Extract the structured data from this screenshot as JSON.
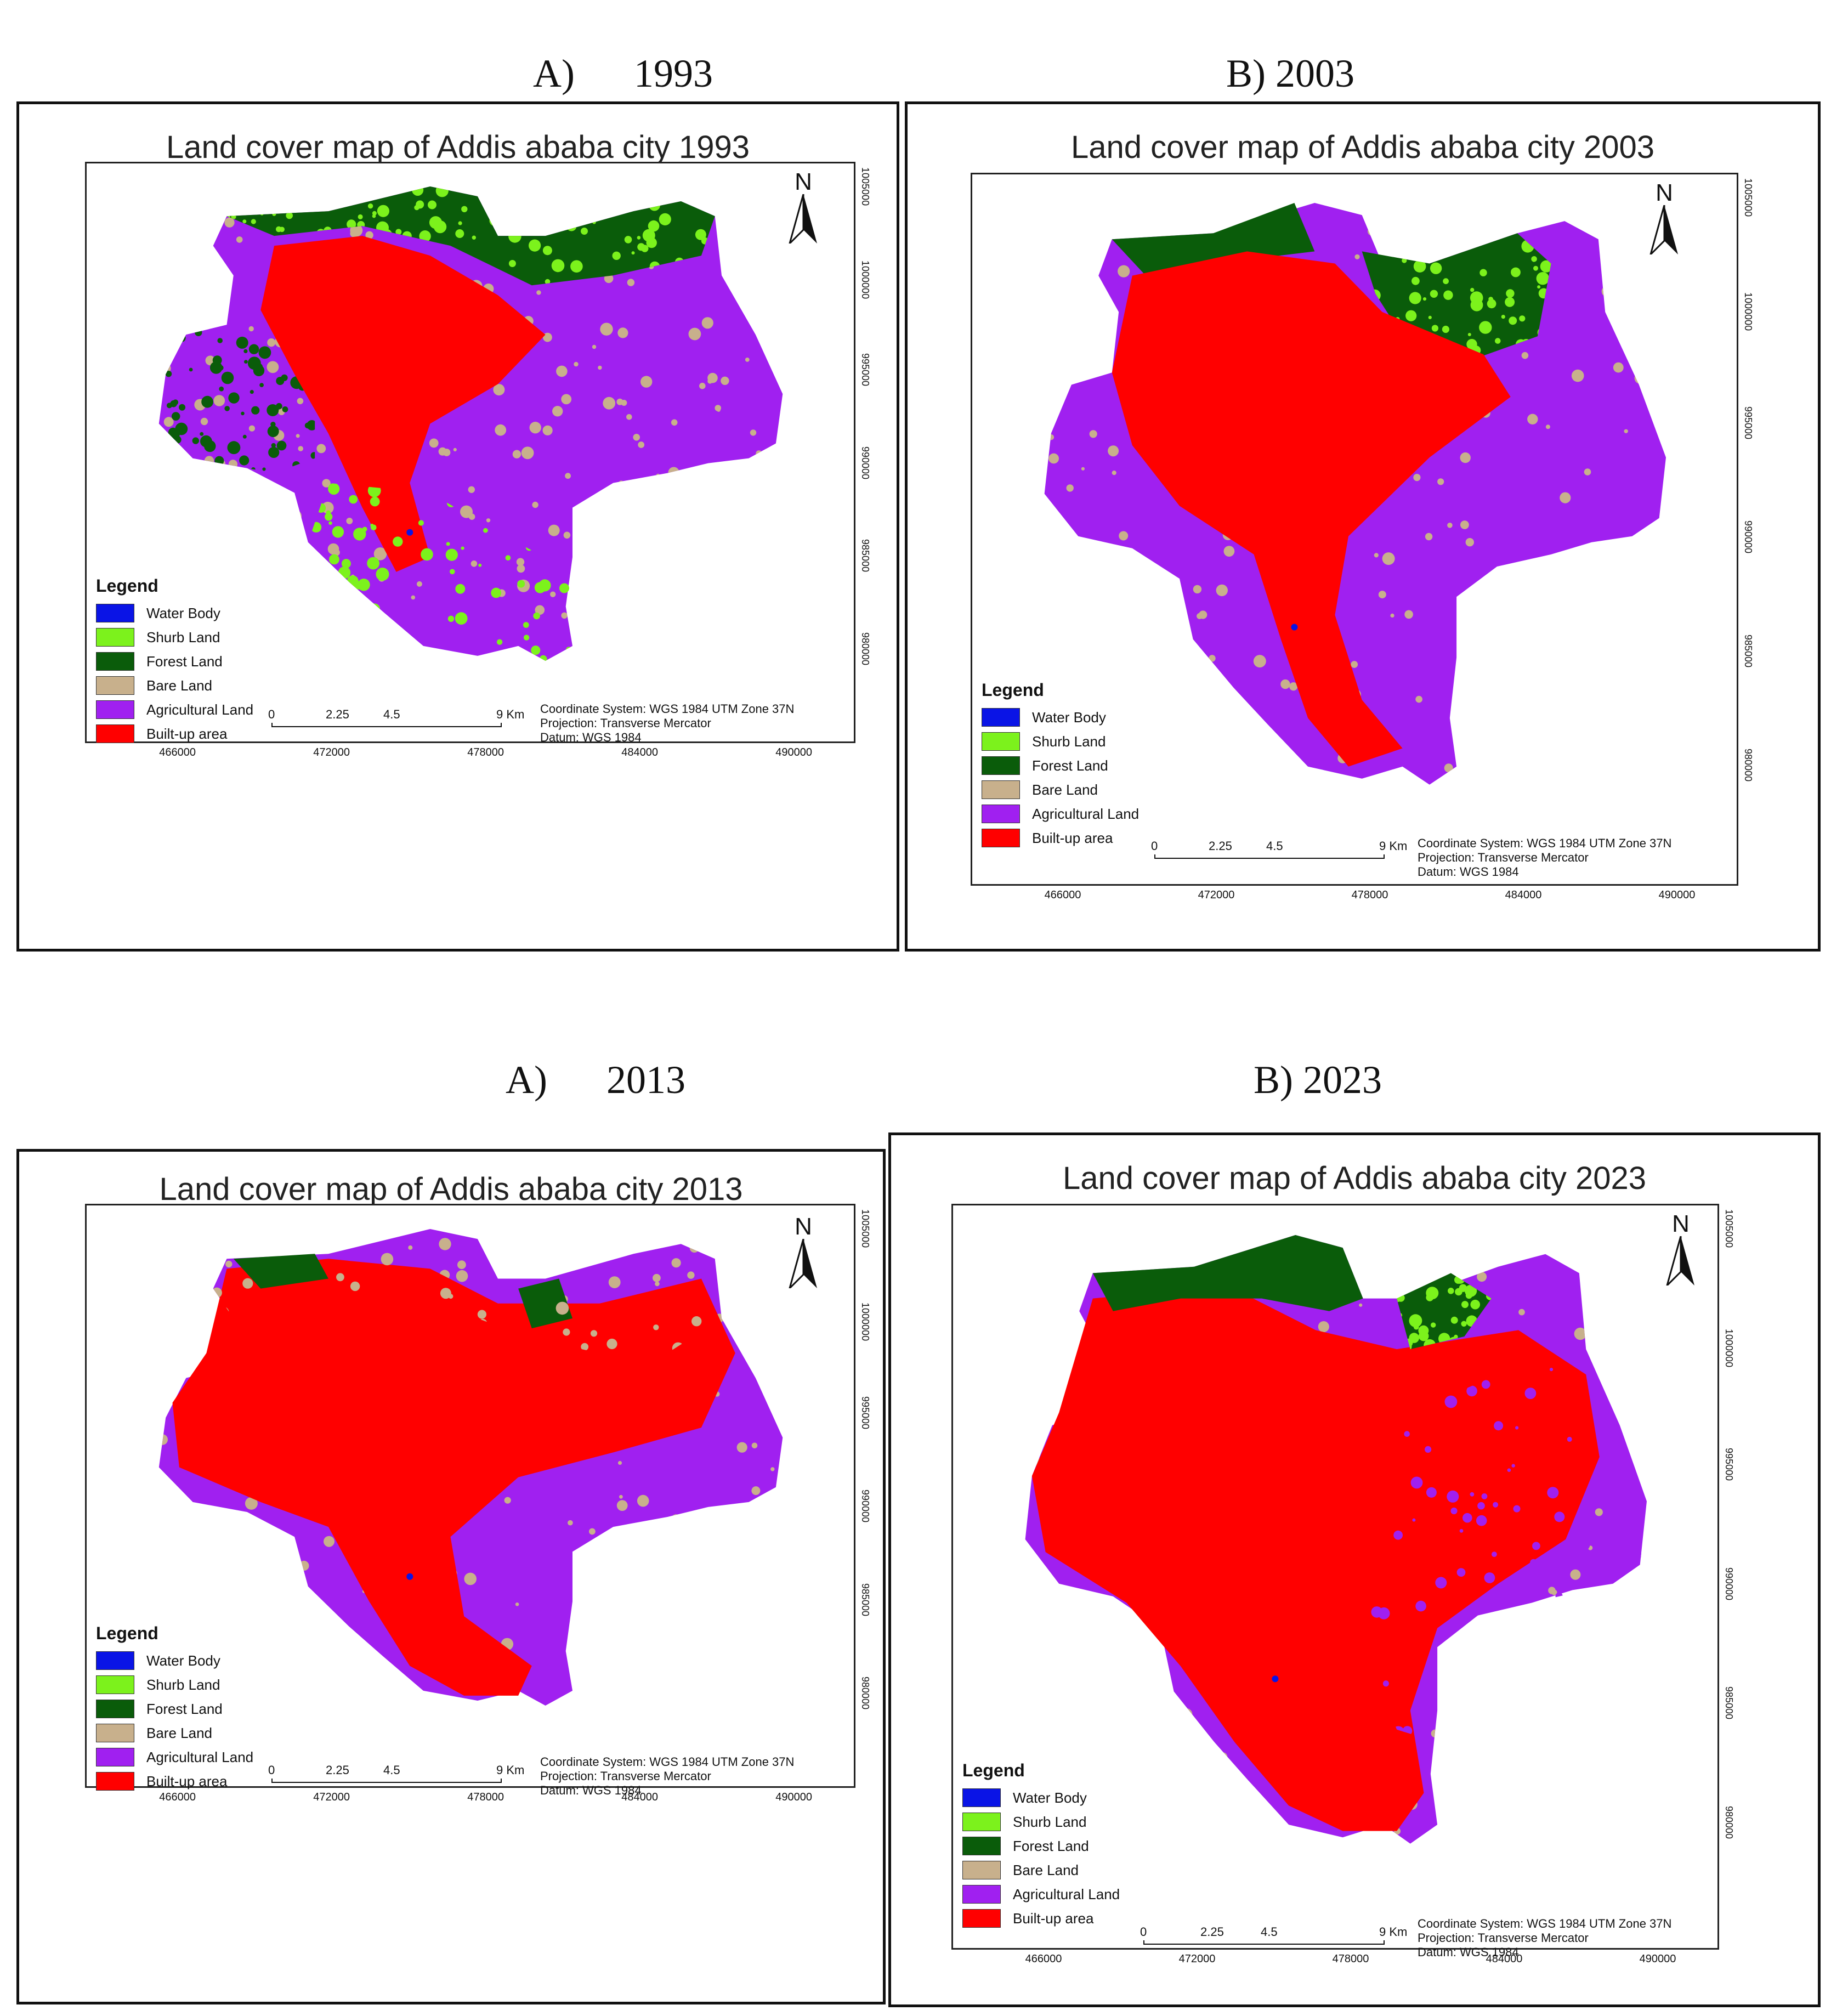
{
  "captions": [
    {
      "letter": "A)",
      "year": "1993"
    },
    {
      "letter": "B) 2003",
      "year": ""
    },
    {
      "letter": "A)",
      "year": "2013"
    },
    {
      "letter": "B) 2023",
      "year": ""
    }
  ],
  "maps": [
    {
      "title": "Land cover map of Addis ababa city 1993",
      "dominant": "mixed-1993"
    },
    {
      "title": "Land cover map of Addis ababa city 2003",
      "dominant": "mixed-2003"
    },
    {
      "title": "Land cover map of Addis ababa city 2013",
      "dominant": "mixed-2013"
    },
    {
      "title": "Land cover map of Addis ababa city 2023",
      "dominant": "mixed-2023"
    }
  ],
  "legend": {
    "title": "Legend",
    "items": [
      {
        "label": "Water Body",
        "color": "#0a14e6"
      },
      {
        "label": "Shurb Land",
        "color": "#7cf21c"
      },
      {
        "label": "Forest Land",
        "color": "#0a5c0a"
      },
      {
        "label": "Bare Land",
        "color": "#c8b08c"
      },
      {
        "label": "Agricultural Land",
        "color": "#a020f0"
      },
      {
        "label": "Built-up area",
        "color": "#ff0000"
      }
    ]
  },
  "coordinate_info": {
    "system": "Coordinate System: WGS 1984 UTM Zone 37N",
    "projection": "Projection: Transverse Mercator",
    "datum": "Datum: WGS 1984"
  },
  "scale_bar": {
    "labels": [
      "0",
      "2.25",
      "4.5",
      "9 Km"
    ]
  },
  "x_ticks": [
    "466000",
    "472000",
    "478000",
    "484000",
    "490000"
  ],
  "y_ticks": [
    "1005000",
    "1000000",
    "995000",
    "990000",
    "985000",
    "980000"
  ],
  "north_label": "N"
}
